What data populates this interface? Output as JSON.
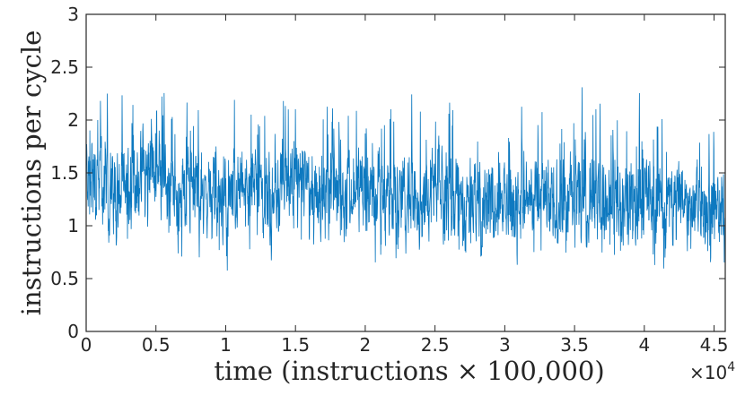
{
  "chart_data": {
    "type": "line",
    "title": "",
    "xlabel": "time (instructions × 100,000)",
    "ylabel": "instructions per cycle",
    "x_multiplier": "×10",
    "x_multiplier_exp": "4",
    "xlim": [
      0,
      45800
    ],
    "ylim": [
      0,
      3
    ],
    "x_ticks": [
      0,
      5000,
      10000,
      15000,
      20000,
      25000,
      30000,
      35000,
      40000,
      45000
    ],
    "x_tick_labels": [
      "0",
      "0.5",
      "1",
      "1.5",
      "2",
      "2.5",
      "3",
      "3.5",
      "4",
      "4.5"
    ],
    "y_ticks": [
      0,
      0.5,
      1,
      1.5,
      2,
      2.5,
      3
    ],
    "y_tick_labels": [
      "0",
      "0.5",
      "1",
      "1.5",
      "2",
      "2.5",
      "3"
    ],
    "grid": false,
    "legend": "none",
    "line_style": "dotted",
    "color": "#0072BD",
    "series": [
      {
        "x": [
          0,
          500,
          1000,
          1500,
          2000,
          2500,
          3000,
          3500,
          4000,
          4500,
          5000,
          5500,
          6000,
          6500,
          7000,
          7500,
          8000,
          8500,
          9000,
          9500,
          10000,
          10500,
          11000,
          11500,
          12000,
          12500,
          13000,
          13500,
          14000,
          14500,
          15000,
          15500,
          16000,
          16500,
          17000,
          17500,
          18000,
          18500,
          19000,
          19500,
          20000,
          20500,
          21000,
          21500,
          22000,
          22500,
          23000,
          23500,
          24000,
          24500,
          25000,
          25500,
          26000,
          26500,
          27000,
          27500,
          28000,
          28500,
          29000,
          29500,
          30000,
          30500,
          31000,
          31500,
          32000,
          32500,
          33000,
          33500,
          34000,
          34500,
          35000,
          35500,
          36000,
          36500,
          37000,
          37500,
          38000,
          38500,
          39000,
          39500,
          40000,
          40500,
          41000,
          41500,
          42000,
          42500,
          43000,
          43500,
          44000,
          44500,
          45000,
          45500
        ],
        "values": [
          1.5,
          1.45,
          1.4,
          1.35,
          1.35,
          1.35,
          1.35,
          1.4,
          1.5,
          1.6,
          1.6,
          1.5,
          1.3,
          1.2,
          1.3,
          1.35,
          1.35,
          1.3,
          1.3,
          1.2,
          1.2,
          1.3,
          1.35,
          1.35,
          1.4,
          1.35,
          1.35,
          1.35,
          1.35,
          1.35,
          1.4,
          1.4,
          1.35,
          1.35,
          1.4,
          1.4,
          1.35,
          1.35,
          1.35,
          1.3,
          1.3,
          1.3,
          1.3,
          1.3,
          1.25,
          1.3,
          1.3,
          1.3,
          1.25,
          1.3,
          1.3,
          1.35,
          1.35,
          1.3,
          1.25,
          1.2,
          1.25,
          1.3,
          1.3,
          1.25,
          1.2,
          1.2,
          1.25,
          1.3,
          1.3,
          1.25,
          1.2,
          1.2,
          1.25,
          1.25,
          1.2,
          1.25,
          1.3,
          1.3,
          1.25,
          1.2,
          1.2,
          1.2,
          1.25,
          1.3,
          1.3,
          1.25,
          1.2,
          1.2,
          1.25,
          1.3,
          1.25,
          1.2,
          1.15,
          1.2,
          1.15,
          1.1
        ]
      }
    ]
  }
}
